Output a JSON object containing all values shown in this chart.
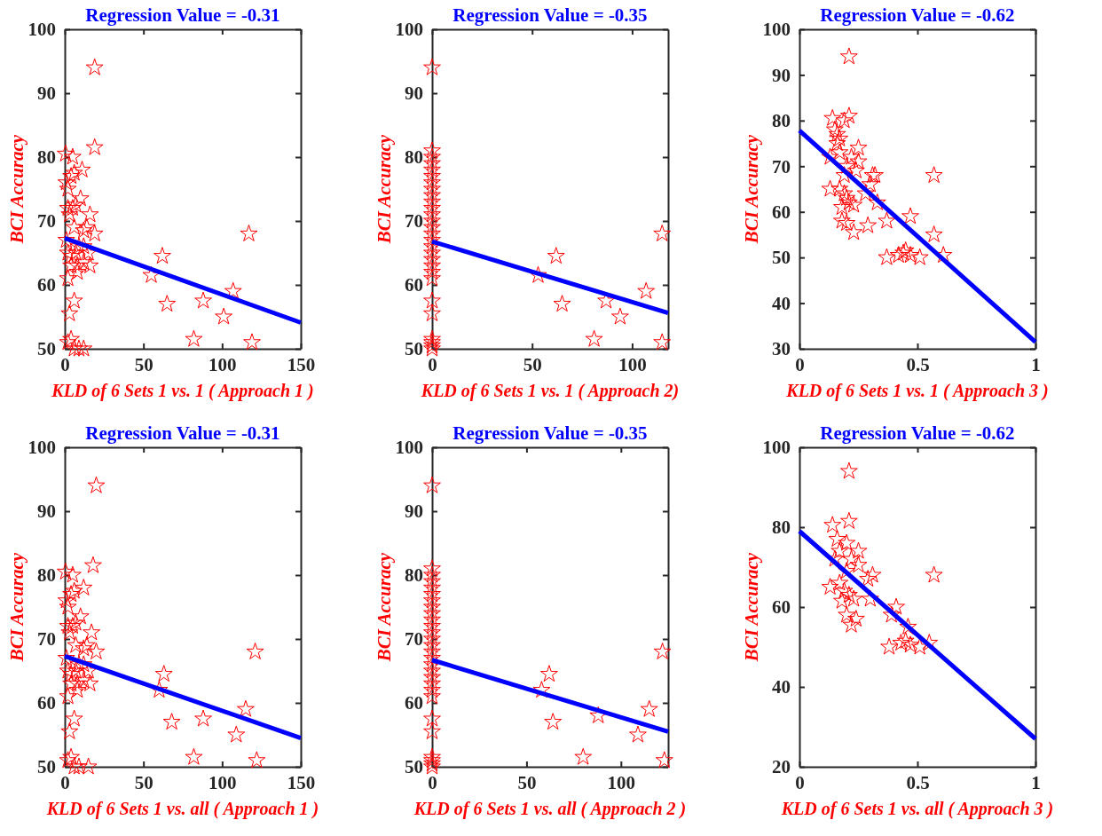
{
  "chart_data": [
    {
      "type": "scatter",
      "title": "Regression Value = -0.31",
      "xlabel": "KLD of 6 Sets 1 vs. 1 ( Approach 1 )",
      "ylabel": "BCI Accuracy",
      "xlim": [
        0,
        150
      ],
      "xticks": [
        0,
        50,
        100,
        150
      ],
      "ylim": [
        50,
        100
      ],
      "yticks": [
        50,
        60,
        70,
        80,
        90,
        100
      ],
      "series": [
        {
          "marker": "star",
          "color": "#ff0000",
          "x": [
            0.5,
            5,
            1,
            2,
            4,
            6,
            11,
            2,
            5,
            7,
            10,
            3,
            1,
            6,
            12,
            14,
            16,
            19,
            2,
            4,
            7,
            9,
            12,
            15,
            4,
            8,
            12,
            16,
            2,
            8,
            6,
            3,
            2,
            4,
            6,
            9,
            12,
            19,
            19,
            55,
            62,
            65,
            82,
            88,
            101,
            107,
            117,
            119
          ],
          "values": [
            80.5,
            80,
            76,
            75,
            77,
            77.5,
            78,
            72,
            72,
            72.5,
            73.5,
            71,
            67,
            69,
            68.5,
            69,
            71,
            68,
            65,
            64.5,
            65,
            66,
            66,
            65,
            63,
            63,
            63.5,
            63,
            61,
            62,
            57.5,
            55.5,
            51,
            51.5,
            50,
            50,
            50,
            94,
            81.5,
            61.5,
            64.5,
            57,
            51.5,
            57.5,
            55,
            59,
            68,
            51
          ]
        },
        {
          "type": "line",
          "color": "#0000ff",
          "x": [
            0,
            150
          ],
          "values": [
            67.3,
            54.1
          ]
        }
      ]
    },
    {
      "type": "scatter",
      "title": "Regression Value = -0.35",
      "xlabel": "KLD of 6 Sets 1 vs. 1 ( Approach 2)",
      "ylabel": "BCI Accuracy",
      "xlim": [
        0,
        118
      ],
      "xticks": [
        0,
        50,
        100
      ],
      "ylim": [
        50,
        100
      ],
      "yticks": [
        50,
        60,
        70,
        80,
        90,
        100
      ],
      "series": [
        {
          "marker": "star",
          "color": "#ff0000",
          "x": [
            0,
            0,
            0,
            0,
            0,
            0,
            0,
            0,
            0,
            0,
            0,
            0,
            0,
            0,
            0,
            0,
            0,
            0,
            0,
            0,
            0,
            0,
            0,
            0,
            0,
            0,
            0,
            0,
            53,
            62,
            65,
            81,
            87,
            94,
            107,
            115,
            115
          ],
          "values": [
            94,
            81,
            80,
            79,
            78,
            77,
            76,
            75,
            74,
            73,
            72,
            71,
            70,
            69,
            68,
            67,
            66,
            65,
            64,
            63,
            62,
            61,
            57.5,
            55.5,
            51.5,
            51,
            50.5,
            50,
            61.5,
            64.5,
            57,
            51.5,
            57.5,
            55,
            59,
            68,
            51
          ]
        },
        {
          "type": "line",
          "color": "#0000ff",
          "x": [
            0,
            118
          ],
          "values": [
            66.8,
            55.6
          ]
        }
      ]
    },
    {
      "type": "scatter",
      "title": "Regression Value = -0.62",
      "xlabel": "KLD of 6 Sets 1 vs. 1 ( Approach 3 )",
      "ylabel": "BCI Accuracy",
      "xlim": [
        0,
        1
      ],
      "xticks": [
        0,
        0.5,
        1
      ],
      "ylim": [
        30,
        100
      ],
      "yticks": [
        30,
        40,
        50,
        60,
        70,
        80,
        90,
        100
      ],
      "series": [
        {
          "marker": "star",
          "color": "#ff0000",
          "x": [
            0.21,
            0.14,
            0.21,
            0.19,
            0.15,
            0.16,
            0.17,
            0.16,
            0.17,
            0.13,
            0.25,
            0.22,
            0.25,
            0.2,
            0.19,
            0.24,
            0.31,
            0.32,
            0.3,
            0.13,
            0.17,
            0.19,
            0.2,
            0.21,
            0.23,
            0.18,
            0.28,
            0.33,
            0.37,
            0.18,
            0.2,
            0.29,
            0.23,
            0.47,
            0.57,
            0.57,
            0.37,
            0.42,
            0.44,
            0.45,
            0.47,
            0.51,
            0.61
          ],
          "values": [
            94,
            80.5,
            81,
            80,
            78,
            77,
            76,
            75,
            73,
            72,
            74,
            72,
            71,
            70,
            68,
            69,
            68,
            68,
            66,
            65,
            65,
            64,
            63,
            62,
            61.5,
            61,
            64,
            62,
            58,
            58,
            57.5,
            57,
            55.5,
            59,
            55,
            68,
            50,
            50.5,
            51,
            51.5,
            50.5,
            50,
            50.5
          ]
        },
        {
          "type": "line",
          "color": "#0000ff",
          "x": [
            0,
            1
          ],
          "values": [
            77.8,
            31.5
          ]
        }
      ]
    },
    {
      "type": "scatter",
      "title": "Regression Value = -0.31",
      "xlabel": "KLD of 6 Sets 1 vs. all ( Approach 1 )",
      "ylabel": "BCI Accuracy",
      "xlim": [
        0,
        150
      ],
      "xticks": [
        0,
        50,
        100,
        150
      ],
      "ylim": [
        50,
        100
      ],
      "yticks": [
        50,
        60,
        70,
        80,
        90,
        100
      ],
      "series": [
        {
          "marker": "star",
          "color": "#ff0000",
          "x": [
            0.5,
            5,
            1,
            2,
            4,
            6,
            12,
            2,
            5,
            7,
            10,
            3,
            1,
            7,
            12,
            14,
            17,
            20,
            2,
            4,
            7,
            9,
            12,
            15,
            4,
            8,
            12,
            16,
            2,
            8,
            6,
            3,
            2,
            4,
            6,
            9,
            15,
            20,
            18,
            60,
            63,
            68,
            82,
            88,
            109,
            115,
            121,
            122
          ],
          "values": [
            80.5,
            80,
            76,
            75,
            77,
            77.5,
            78,
            72,
            72,
            72.5,
            73.5,
            71,
            67,
            69,
            68.5,
            69,
            71,
            68,
            65,
            64.5,
            65,
            66,
            66,
            65,
            63,
            63,
            63.5,
            63,
            61,
            62,
            57.5,
            55.5,
            51,
            51.5,
            50,
            50,
            50,
            94,
            81.5,
            62,
            64.5,
            57,
            51.5,
            57.5,
            55,
            59,
            68,
            51
          ]
        },
        {
          "type": "line",
          "color": "#0000ff",
          "x": [
            0,
            150
          ],
          "values": [
            67.3,
            54.5
          ]
        }
      ]
    },
    {
      "type": "scatter",
      "title": "Regression Value = -0.35",
      "xlabel": "KLD of 6 Sets 1 vs. all ( Approach 2 )",
      "ylabel": "BCI Accuracy",
      "xlim": [
        0,
        125
      ],
      "xticks": [
        0,
        50,
        100
      ],
      "ylim": [
        50,
        100
      ],
      "yticks": [
        50,
        60,
        70,
        80,
        90,
        100
      ],
      "series": [
        {
          "marker": "star",
          "color": "#ff0000",
          "x": [
            0,
            0,
            0,
            0,
            0,
            0,
            0,
            0,
            0,
            0,
            0,
            0,
            0,
            0,
            0,
            0,
            0,
            0,
            0,
            0,
            0,
            0,
            0,
            0,
            0,
            0,
            0,
            0,
            58,
            62,
            64,
            80,
            88,
            109,
            115,
            122,
            123
          ],
          "values": [
            94,
            81,
            80,
            79,
            78,
            77,
            76,
            75,
            74,
            73,
            72,
            71,
            70,
            69,
            68,
            67,
            66,
            65,
            64,
            63,
            62,
            61,
            57.5,
            55.5,
            51.5,
            51,
            50.5,
            50,
            62,
            64.5,
            57,
            51.5,
            58,
            55,
            59,
            68,
            51
          ]
        },
        {
          "type": "line",
          "color": "#0000ff",
          "x": [
            0,
            125
          ],
          "values": [
            66.7,
            55.5
          ]
        }
      ]
    },
    {
      "type": "scatter",
      "title": "Regression Value = -0.62",
      "xlabel": "KLD of 6 Sets 1 vs. all ( Approach 3 )",
      "ylabel": "BCI Accuracy",
      "xlim": [
        0,
        1
      ],
      "xticks": [
        0,
        0.5,
        1
      ],
      "ylim": [
        20,
        100
      ],
      "yticks": [
        20,
        40,
        60,
        80,
        100
      ],
      "series": [
        {
          "marker": "star",
          "color": "#ff0000",
          "x": [
            0.21,
            0.14,
            0.21,
            0.16,
            0.2,
            0.17,
            0.25,
            0.22,
            0.25,
            0.15,
            0.2,
            0.31,
            0.29,
            0.13,
            0.17,
            0.19,
            0.21,
            0.23,
            0.18,
            0.3,
            0.2,
            0.24,
            0.22,
            0.41,
            0.39,
            0.46,
            0.57,
            0.38,
            0.43,
            0.45,
            0.47,
            0.51,
            0.55
          ],
          "values": [
            94,
            80.5,
            81.5,
            77,
            76,
            74,
            74,
            72,
            70.5,
            72,
            69,
            68,
            67,
            65,
            66,
            64,
            63,
            62,
            61.5,
            62,
            58,
            57,
            55.5,
            60,
            58,
            55,
            68,
            50,
            51,
            51.5,
            50.5,
            50,
            51
          ]
        },
        {
          "type": "line",
          "color": "#0000ff",
          "x": [
            0,
            1
          ],
          "values": [
            79,
            27
          ]
        }
      ]
    }
  ]
}
